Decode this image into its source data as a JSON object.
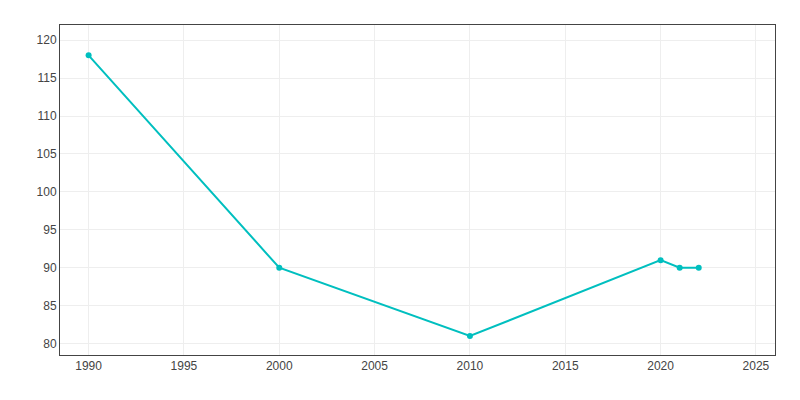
{
  "chart_data": {
    "type": "line",
    "x": [
      1990,
      2000,
      2010,
      2020,
      2021,
      2022
    ],
    "values": [
      118,
      90,
      81,
      91,
      90,
      90
    ],
    "color": "#00BFBF",
    "marker": "circle",
    "xlim": [
      1988.5,
      2026
    ],
    "ylim": [
      78.5,
      122
    ],
    "xticks": [
      1990,
      1995,
      2000,
      2005,
      2010,
      2015,
      2020,
      2025
    ],
    "yticks": [
      80,
      85,
      90,
      95,
      100,
      105,
      110,
      115,
      120
    ],
    "grid": true
  }
}
